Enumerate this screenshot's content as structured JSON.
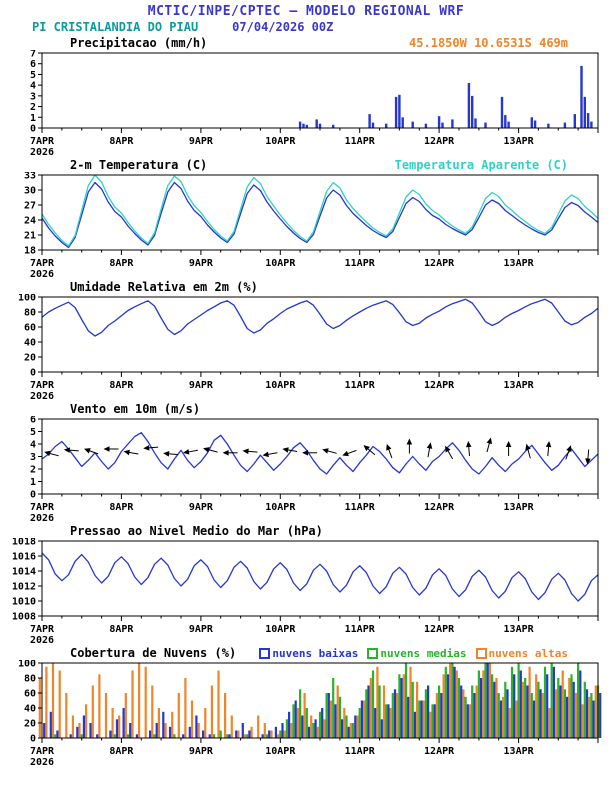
{
  "theme": {
    "title": "#3a36cf",
    "teal": "#0a9d9d",
    "blue": "#2636d0",
    "cyan": "#2fd3c5",
    "orange": "#f08428",
    "green": "#28b428"
  },
  "header": {
    "title": "MCTIC/INPE/CPTEC — MODELO REGIONAL WRF",
    "station": "PI CRISTALANDIA DO PIAU",
    "run": "07/04/2026 00Z",
    "location": "45.1850W 10.6531S 469m"
  },
  "x_axis": {
    "hours": 168,
    "major": 24,
    "minor": 6,
    "year": "2026",
    "ticks": [
      "7APR",
      "8APR",
      "9APR",
      "10APR",
      "11APR",
      "12APR",
      "13APR"
    ]
  },
  "chart_data": [
    {
      "id": "precipitation",
      "type": "bar",
      "title": "Precipitacao (mm/h)",
      "ylim": [
        0,
        7
      ],
      "yticks": [
        0,
        1,
        2,
        3,
        4,
        5,
        6,
        7
      ],
      "color": "#2636d0",
      "xlabel": "",
      "ylabel": "mm/h",
      "points": [
        [
          78,
          0.6
        ],
        [
          79,
          0.4
        ],
        [
          80,
          0.3
        ],
        [
          83,
          0.8
        ],
        [
          84,
          0.4
        ],
        [
          88,
          0.3
        ],
        [
          99,
          1.3
        ],
        [
          100,
          0.5
        ],
        [
          104,
          0.4
        ],
        [
          107,
          2.9
        ],
        [
          108,
          3.1
        ],
        [
          109,
          1.0
        ],
        [
          112,
          0.6
        ],
        [
          116,
          0.4
        ],
        [
          120,
          1.1
        ],
        [
          121,
          0.5
        ],
        [
          124,
          0.8
        ],
        [
          129,
          4.2
        ],
        [
          130,
          3.0
        ],
        [
          131,
          0.9
        ],
        [
          134,
          0.5
        ],
        [
          139,
          2.9
        ],
        [
          140,
          1.2
        ],
        [
          141,
          0.6
        ],
        [
          148,
          1.0
        ],
        [
          149,
          0.7
        ],
        [
          153,
          0.4
        ],
        [
          158,
          0.5
        ],
        [
          161,
          1.3
        ],
        [
          163,
          5.8
        ],
        [
          164,
          2.9
        ],
        [
          165,
          1.4
        ],
        [
          166,
          0.6
        ]
      ]
    },
    {
      "id": "temperature",
      "type": "line",
      "title": "2-m Temperatura (C)",
      "right_label": "Temperatura Aparente (C)",
      "ylim": [
        18,
        33
      ],
      "yticks": [
        18,
        21,
        24,
        27,
        30,
        33
      ],
      "dt": 2,
      "series": [
        {
          "name": "2-m Temperatura (C)",
          "color": "#2636d0",
          "values": [
            24.4,
            22.4,
            20.8,
            19.5,
            18.5,
            20.5,
            25.0,
            29.6,
            31.5,
            30.2,
            27.6,
            25.7,
            24.6,
            22.8,
            21.3,
            20.0,
            19.0,
            20.9,
            25.3,
            29.6,
            31.5,
            30.3,
            27.8,
            25.9,
            24.7,
            23.0,
            21.6,
            20.4,
            19.5,
            21.2,
            25.3,
            29.3,
            31.0,
            29.9,
            27.6,
            25.8,
            24.2,
            22.7,
            21.4,
            20.3,
            19.5,
            21.1,
            24.8,
            28.4,
            30.0,
            29.0,
            26.9,
            25.3,
            24.1,
            22.9,
            21.9,
            21.1,
            20.5,
            21.7,
            24.5,
            27.3,
            28.5,
            27.7,
            26.1,
            24.9,
            24.2,
            23.1,
            22.3,
            21.6,
            21.0,
            22.1,
            24.5,
            27.0,
            28.0,
            27.3,
            25.9,
            24.9,
            23.9,
            23.0,
            22.2,
            21.5,
            21.0,
            22.0,
            24.3,
            26.5,
            27.5,
            26.9,
            25.6,
            24.6,
            23.5
          ]
        },
        {
          "name": "Temperatura Aparente (C)",
          "color": "#2fd3c5",
          "values": [
            25.2,
            23.1,
            21.4,
            19.9,
            18.8,
            20.9,
            25.9,
            30.9,
            33.0,
            31.6,
            28.7,
            26.6,
            25.4,
            23.5,
            21.8,
            20.4,
            19.3,
            21.4,
            26.2,
            30.9,
            32.8,
            31.7,
            28.9,
            26.9,
            25.5,
            23.7,
            22.1,
            20.8,
            19.8,
            21.7,
            26.2,
            30.6,
            32.5,
            31.3,
            28.7,
            26.8,
            25.0,
            23.4,
            21.9,
            20.7,
            19.8,
            21.6,
            25.7,
            29.7,
            31.5,
            30.4,
            28.0,
            26.3,
            24.9,
            23.6,
            22.4,
            21.5,
            20.8,
            22.2,
            25.4,
            28.6,
            30.0,
            29.1,
            27.2,
            25.9,
            25.0,
            23.8,
            22.8,
            22.0,
            21.3,
            22.6,
            25.4,
            28.3,
            29.5,
            28.7,
            27.0,
            25.9,
            24.7,
            23.7,
            22.7,
            21.9,
            21.3,
            22.5,
            25.2,
            27.8,
            29.0,
            28.3,
            26.7,
            25.6,
            24.3
          ]
        }
      ]
    },
    {
      "id": "humidity",
      "type": "line",
      "title": "Umidade Relativa em 2m (%)",
      "ylim": [
        0,
        100
      ],
      "yticks": [
        0,
        20,
        40,
        60,
        80,
        100
      ],
      "dt": 2,
      "series": [
        {
          "name": "Umidade Relativa",
          "color": "#2636d0",
          "values": [
            73,
            80,
            85,
            89,
            93,
            86,
            70,
            55,
            48,
            53,
            62,
            68,
            75,
            82,
            87,
            91,
            95,
            88,
            72,
            57,
            50,
            55,
            64,
            70,
            76,
            82,
            87,
            92,
            95,
            89,
            74,
            58,
            52,
            56,
            65,
            71,
            78,
            84,
            88,
            92,
            95,
            89,
            77,
            64,
            58,
            62,
            69,
            75,
            80,
            85,
            89,
            92,
            95,
            90,
            79,
            67,
            62,
            65,
            72,
            77,
            81,
            87,
            91,
            94,
            97,
            92,
            80,
            67,
            62,
            66,
            73,
            78,
            82,
            87,
            91,
            94,
            97,
            92,
            80,
            68,
            63,
            66,
            73,
            78,
            85
          ]
        }
      ]
    },
    {
      "id": "wind",
      "type": "line",
      "title": "Vento em 10m (m/s)",
      "ylim": [
        0,
        6
      ],
      "yticks": [
        0,
        1,
        2,
        3,
        4,
        5,
        6
      ],
      "dt": 2,
      "series": [
        {
          "name": "Vento em 10m",
          "color": "#2636d0",
          "values": [
            2.8,
            3.2,
            3.8,
            4.2,
            3.6,
            2.9,
            2.2,
            2.7,
            3.3,
            2.6,
            2.0,
            2.5,
            3.4,
            4.0,
            4.6,
            4.9,
            4.2,
            3.3,
            2.5,
            2.0,
            2.8,
            3.5,
            2.7,
            2.1,
            2.6,
            3.3,
            4.3,
            4.7,
            4.0,
            3.1,
            2.3,
            1.8,
            2.4,
            3.1,
            2.5,
            1.9,
            2.4,
            3.0,
            3.7,
            4.1,
            3.5,
            2.7,
            2.0,
            1.6,
            2.3,
            2.9,
            2.3,
            1.8,
            2.5,
            3.1,
            3.8,
            3.4,
            2.8,
            2.1,
            1.7,
            2.4,
            3.0,
            2.4,
            1.9,
            2.6,
            3.0,
            3.6,
            4.1,
            3.5,
            2.7,
            2.0,
            1.6,
            2.2,
            2.9,
            2.3,
            1.8,
            2.4,
            2.8,
            3.4,
            3.9,
            3.2,
            2.5,
            1.9,
            2.3,
            3.0,
            3.6,
            2.9,
            2.2,
            2.7,
            3.2
          ]
        }
      ],
      "arrows": [
        [
          3,
          3.2,
          195
        ],
        [
          9,
          3.5,
          185
        ],
        [
          15,
          3.4,
          200
        ],
        [
          21,
          3.6,
          180
        ],
        [
          27,
          3.3,
          190
        ],
        [
          33,
          3.7,
          175
        ],
        [
          39,
          3.2,
          185
        ],
        [
          45,
          3.4,
          170
        ],
        [
          51,
          3.5,
          195
        ],
        [
          57,
          3.3,
          180
        ],
        [
          63,
          3.4,
          185
        ],
        [
          69,
          3.2,
          170
        ],
        [
          75,
          3.5,
          190
        ],
        [
          81,
          3.3,
          180
        ],
        [
          87,
          3.4,
          195
        ],
        [
          93,
          3.3,
          160
        ],
        [
          99,
          3.5,
          220
        ],
        [
          105,
          3.4,
          250
        ],
        [
          111,
          3.8,
          270
        ],
        [
          117,
          3.5,
          280
        ],
        [
          123,
          3.3,
          240
        ],
        [
          129,
          3.6,
          265
        ],
        [
          135,
          3.9,
          285
        ],
        [
          141,
          3.6,
          270
        ],
        [
          147,
          3.4,
          255
        ],
        [
          153,
          3.6,
          275
        ],
        [
          159,
          3.3,
          290
        ],
        [
          165,
          3.0,
          95
        ]
      ]
    },
    {
      "id": "pressure",
      "type": "line",
      "title": "Pressao ao Nivel Medio do Mar (hPa)",
      "ylim": [
        1008,
        1018
      ],
      "yticks": [
        1008,
        1010,
        1012,
        1014,
        1016,
        1018
      ],
      "dt": 2,
      "series": [
        {
          "name": "Pressao ao Nivel Medio do Mar",
          "color": "#2636d0",
          "values": [
            1016.4,
            1015.5,
            1013.6,
            1012.7,
            1013.5,
            1015.3,
            1016.2,
            1015.2,
            1013.4,
            1012.4,
            1013.3,
            1015.1,
            1015.9,
            1015.0,
            1013.2,
            1012.2,
            1013.1,
            1014.9,
            1015.7,
            1014.8,
            1013.0,
            1012.0,
            1012.9,
            1014.7,
            1015.5,
            1014.6,
            1012.8,
            1011.8,
            1012.7,
            1014.5,
            1015.3,
            1014.4,
            1012.6,
            1011.6,
            1012.5,
            1014.3,
            1015.1,
            1014.2,
            1012.4,
            1011.4,
            1012.3,
            1014.1,
            1014.9,
            1014.0,
            1012.2,
            1011.2,
            1012.1,
            1013.9,
            1014.7,
            1013.8,
            1012.0,
            1011.0,
            1011.9,
            1013.7,
            1014.5,
            1013.6,
            1011.8,
            1010.8,
            1011.7,
            1013.5,
            1014.3,
            1013.4,
            1011.6,
            1010.6,
            1011.5,
            1013.3,
            1014.1,
            1013.2,
            1011.4,
            1010.4,
            1011.3,
            1013.1,
            1013.9,
            1013.0,
            1011.2,
            1010.2,
            1011.1,
            1012.9,
            1013.7,
            1012.8,
            1011.0,
            1010.0,
            1010.9,
            1012.7,
            1013.5
          ]
        }
      ]
    },
    {
      "id": "clouds",
      "type": "multibar",
      "title": "Cobertura de Nuvens (%)",
      "ylim": [
        0,
        100
      ],
      "yticks": [
        0,
        20,
        40,
        60,
        80,
        100
      ],
      "dt": 2,
      "legend": [
        {
          "label": "nuvens baixas",
          "color": "#2636d0"
        },
        {
          "label": "nuvens medias",
          "color": "#28b428"
        },
        {
          "label": "nuvens altas",
          "color": "#f08428"
        }
      ],
      "series": [
        {
          "name": "nuvens altas",
          "color": "#f08428",
          "offset": -2.2,
          "width": 2.2,
          "values": [
            80,
            95,
            100,
            90,
            60,
            30,
            20,
            45,
            70,
            85,
            60,
            40,
            30,
            60,
            90,
            100,
            95,
            70,
            40,
            20,
            35,
            60,
            80,
            50,
            20,
            40,
            70,
            90,
            60,
            30,
            10,
            5,
            15,
            30,
            20,
            10,
            5,
            10,
            20,
            40,
            60,
            30,
            15,
            25,
            50,
            70,
            40,
            20,
            30,
            50,
            80,
            95,
            70,
            40,
            60,
            85,
            95,
            75,
            50,
            35,
            60,
            85,
            100,
            90,
            65,
            45,
            70,
            90,
            100,
            80,
            55,
            40,
            50,
            75,
            95,
            85,
            60,
            40,
            65,
            90,
            80,
            60,
            45,
            55,
            70
          ]
        },
        {
          "name": "nuvens medias",
          "color": "#28b428",
          "offset": 0,
          "width": 2.2,
          "values": [
            0,
            0,
            5,
            0,
            0,
            0,
            5,
            0,
            0,
            0,
            0,
            5,
            0,
            5,
            0,
            0,
            0,
            5,
            0,
            0,
            5,
            0,
            0,
            0,
            0,
            0,
            5,
            10,
            5,
            0,
            0,
            5,
            0,
            0,
            5,
            0,
            10,
            25,
            45,
            65,
            40,
            20,
            35,
            60,
            80,
            55,
            30,
            20,
            40,
            65,
            90,
            70,
            45,
            60,
            85,
            100,
            75,
            50,
            65,
            45,
            70,
            95,
            100,
            80,
            55,
            70,
            90,
            100,
            85,
            60,
            75,
            95,
            100,
            80,
            60,
            75,
            95,
            100,
            80,
            65,
            85,
            100,
            75,
            60,
            70
          ]
        },
        {
          "name": "nuvens baixas",
          "color": "#2636d0",
          "offset": 2.2,
          "width": 2.2,
          "values": [
            20,
            35,
            10,
            0,
            5,
            15,
            30,
            20,
            5,
            0,
            10,
            25,
            40,
            20,
            5,
            0,
            10,
            20,
            35,
            15,
            0,
            5,
            15,
            30,
            10,
            5,
            0,
            0,
            5,
            10,
            20,
            10,
            0,
            5,
            10,
            15,
            20,
            35,
            50,
            30,
            15,
            25,
            40,
            60,
            45,
            25,
            15,
            30,
            50,
            70,
            40,
            25,
            45,
            65,
            80,
            55,
            35,
            50,
            70,
            45,
            60,
            85,
            95,
            70,
            45,
            60,
            80,
            100,
            75,
            50,
            65,
            85,
            90,
            70,
            50,
            65,
            85,
            95,
            70,
            55,
            75,
            90,
            65,
            50,
            60
          ]
        }
      ]
    }
  ]
}
